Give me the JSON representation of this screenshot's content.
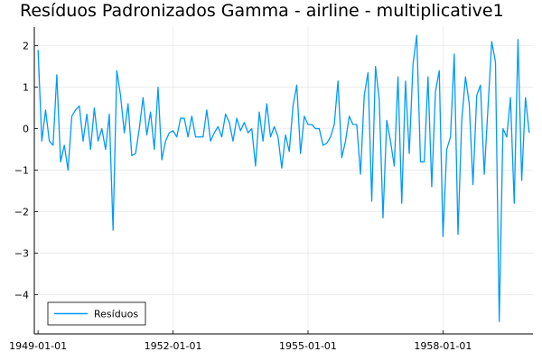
{
  "chart_data": {
    "type": "line",
    "title": "Resíduos Padronizados Gamma - airline - multiplicative1",
    "xlabel": "",
    "ylabel": "",
    "x_start": "1949-01-01",
    "x_frequency": "monthly",
    "x_ticks": [
      {
        "index": 0,
        "label": "1949-01-01"
      },
      {
        "index": 36,
        "label": "1952-01-01"
      },
      {
        "index": 72,
        "label": "1955-01-01"
      },
      {
        "index": 108,
        "label": "1958-01-01"
      }
    ],
    "y_ticks": [
      {
        "value": 2,
        "label": "2"
      },
      {
        "value": 1,
        "label": "1"
      },
      {
        "value": 0,
        "label": "0"
      },
      {
        "value": -1,
        "label": "−1"
      },
      {
        "value": -2,
        "label": "−2"
      },
      {
        "value": -3,
        "label": "−3"
      },
      {
        "value": -4,
        "label": "−4"
      }
    ],
    "xlim": [
      -1,
      132
    ],
    "ylim": [
      -4.95,
      2.45
    ],
    "grid": true,
    "legend_position": "bottom-left",
    "series": [
      {
        "name": "Resíduos",
        "color": "#009AF9",
        "values": [
          1.9,
          -0.3,
          0.45,
          -0.3,
          -0.4,
          1.3,
          -0.8,
          -0.4,
          -1.0,
          0.3,
          0.45,
          0.55,
          -0.3,
          0.35,
          -0.5,
          0.5,
          -0.3,
          0.0,
          -0.5,
          0.35,
          -2.45,
          1.4,
          0.8,
          -0.1,
          0.6,
          -0.65,
          -0.6,
          0.0,
          0.75,
          -0.15,
          0.4,
          -0.5,
          1.0,
          -0.75,
          -0.3,
          -0.1,
          -0.05,
          -0.2,
          0.25,
          0.25,
          -0.2,
          0.3,
          -0.2,
          -0.2,
          -0.2,
          0.45,
          -0.3,
          -0.1,
          0.05,
          -0.2,
          0.35,
          0.15,
          -0.3,
          0.25,
          -0.05,
          0.15,
          -0.1,
          0.0,
          -0.9,
          0.4,
          -0.3,
          0.6,
          -0.2,
          0.05,
          -0.2,
          -0.95,
          -0.15,
          -0.55,
          0.55,
          1.05,
          -0.6,
          0.3,
          0.1,
          0.1,
          0.0,
          0.0,
          -0.4,
          -0.35,
          -0.2,
          0.1,
          1.15,
          -0.7,
          -0.3,
          0.3,
          0.1,
          0.1,
          -1.1,
          0.8,
          1.35,
          -1.75,
          1.5,
          0.7,
          -2.15,
          0.2,
          -0.3,
          -0.9,
          1.25,
          -1.8,
          1.15,
          -0.6,
          1.55,
          2.25,
          -0.8,
          -0.8,
          1.25,
          -1.4,
          0.9,
          1.4,
          -2.6,
          -0.5,
          -0.2,
          1.8,
          -2.55,
          0.2,
          1.25,
          0.6,
          -1.35,
          0.8,
          1.05,
          -1.1,
          0.5,
          2.1,
          1.6,
          -4.65,
          0.0,
          -0.2,
          0.75,
          -1.8,
          2.15,
          -1.25,
          0.75,
          -0.1
        ]
      }
    ]
  }
}
